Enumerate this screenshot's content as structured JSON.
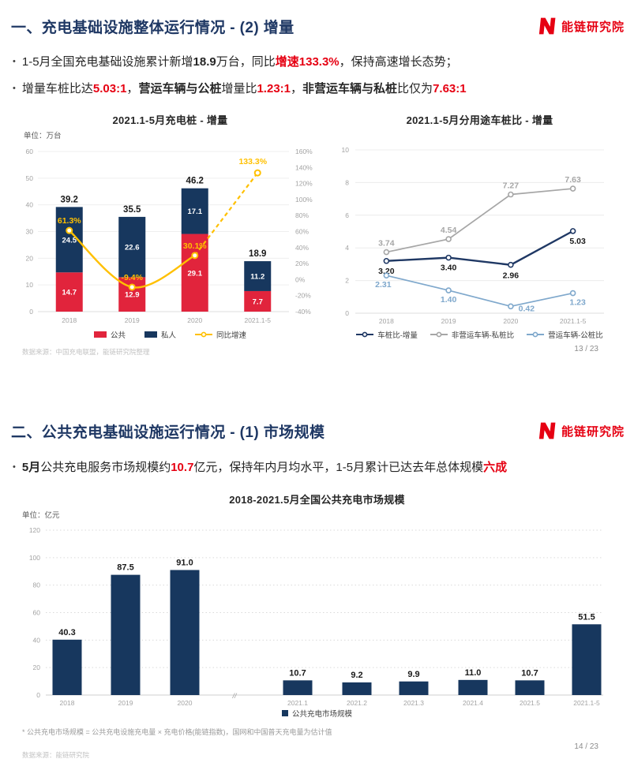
{
  "logo": {
    "brand": "能链研究院",
    "color": "#e60012"
  },
  "slide1": {
    "title": "一、充电基础设施整体运行情况 - (2) 增量",
    "page": "13 / 23",
    "source": "数据来源：中国充电联盟，能链研究院整理",
    "bullets": [
      {
        "segments": [
          {
            "t": "1-5月全国充电基础设施累计新增"
          },
          {
            "t": "18.9",
            "b": 1
          },
          {
            "t": "万台，同比"
          },
          {
            "t": "增速133.3%",
            "b": 1,
            "r": 1
          },
          {
            "t": "，保持高速增长态势；"
          }
        ]
      },
      {
        "segments": [
          {
            "t": "增量车桩比达"
          },
          {
            "t": "5.03:1",
            "b": 1,
            "r": 1
          },
          {
            "t": "，"
          },
          {
            "t": "营运车辆与公桩",
            "b": 1
          },
          {
            "t": "增量比"
          },
          {
            "t": "1.23:1",
            "b": 1,
            "r": 1
          },
          {
            "t": "，"
          },
          {
            "t": "非营运车辆与私桩",
            "b": 1
          },
          {
            "t": "比仅为"
          },
          {
            "t": "7.63:1",
            "b": 1,
            "r": 1
          }
        ]
      }
    ]
  },
  "slide2": {
    "title": "二、公共充电基础设施运行情况 - (1) 市场规模",
    "page": "14 / 23",
    "source": "数据来源：能链研究院",
    "footnote": "* 公共充电市场规模 = 公共充电设施充电量 × 充电价格(能链指数)，国网和中国普天充电量为估计值",
    "bullets": [
      {
        "segments": [
          {
            "t": "5月",
            "b": 1
          },
          {
            "t": "公共充电服务市场规模约"
          },
          {
            "t": "10.7",
            "b": 1,
            "r": 1
          },
          {
            "t": "亿元，保持年内月均水平，1-5月累计已达去年总体规模"
          },
          {
            "t": "六成",
            "b": 1,
            "r": 1
          }
        ]
      }
    ]
  },
  "chart_data": [
    {
      "type": "bar",
      "title": "2021.1-5月充电桩 - 增量",
      "unit": "单位：万台",
      "categories": [
        "2018",
        "2019",
        "2020",
        "2021.1-5"
      ],
      "series": [
        {
          "name": "公共",
          "chart": "bar",
          "color": "#e1243c",
          "values": [
            14.7,
            12.9,
            29.1,
            7.7
          ],
          "labels": [
            "14.7",
            "12.9",
            "29.1",
            "7.7"
          ]
        },
        {
          "name": "私人",
          "chart": "bar",
          "color": "#17375e",
          "values": [
            24.5,
            22.6,
            17.1,
            11.2
          ],
          "labels": [
            "24.5",
            "22.6",
            "17.1",
            "11.2"
          ]
        },
        {
          "name": "同比增速",
          "chart": "line",
          "color": "#ffc000",
          "axis": "right",
          "dashed_from": 2,
          "values": [
            61.3,
            -9.4,
            30.1,
            133.3
          ],
          "labels": [
            "61.3%",
            "-9.4%",
            "30.1%",
            "133.3%"
          ]
        }
      ],
      "totals": [
        39.2,
        35.5,
        46.2,
        18.9
      ],
      "total_labels": [
        "39.2",
        "35.5",
        "46.2",
        "18.9"
      ],
      "left_axis": {
        "min": 0,
        "max": 60,
        "step": 10
      },
      "right_axis": {
        "min": -40,
        "max": 160,
        "step": 20,
        "suffix": "%"
      },
      "grid": "solid",
      "legend_position": "bottom"
    },
    {
      "type": "line",
      "title": "2021.1-5月分用途车桩比 - 增量",
      "categories": [
        "2018",
        "2019",
        "2020",
        "2021.1-5"
      ],
      "series": [
        {
          "name": "车桩比-增量",
          "color": "#1f3864",
          "values": [
            3.2,
            3.4,
            2.96,
            5.03
          ],
          "labels": [
            "3.20",
            "3.40",
            "2.96",
            "5.03"
          ]
        },
        {
          "name": "非营运车辆-私桩比",
          "color": "#a6a6a6",
          "values": [
            3.74,
            4.54,
            7.27,
            7.63
          ],
          "labels": [
            "3.74",
            "4.54",
            "7.27",
            "7.63"
          ]
        },
        {
          "name": "营运车辆-公桩比",
          "color": "#7fa8cc",
          "values": [
            2.31,
            1.4,
            0.42,
            1.23
          ],
          "labels": [
            "2.31",
            "1.40",
            "0.42",
            "1.23"
          ]
        }
      ],
      "y_axis": {
        "min": 0,
        "max": 10,
        "step": 2
      },
      "grid": "solid",
      "legend_position": "bottom"
    },
    {
      "type": "bar",
      "title": "2018-2021.5月全国公共充电市场规模",
      "unit": "单位：亿元",
      "series_name": "公共充电市场规模",
      "color": "#17375e",
      "categories": [
        "2018",
        "2019",
        "2020",
        "2021.1",
        "2021.2",
        "2021.3",
        "2021.4",
        "2021.5",
        "2021.1-5"
      ],
      "values": [
        40.3,
        87.5,
        91.0,
        10.7,
        9.2,
        9.9,
        11.0,
        10.7,
        51.5
      ],
      "labels": [
        "40.3",
        "87.5",
        "91.0",
        "10.7",
        "9.2",
        "9.9",
        "11.0",
        "10.7",
        "51.5"
      ],
      "y_axis": {
        "min": 0,
        "max": 120,
        "step": 20
      },
      "axis_break_after_index": 2,
      "grid": "dotted",
      "legend_position": "bottom"
    }
  ]
}
